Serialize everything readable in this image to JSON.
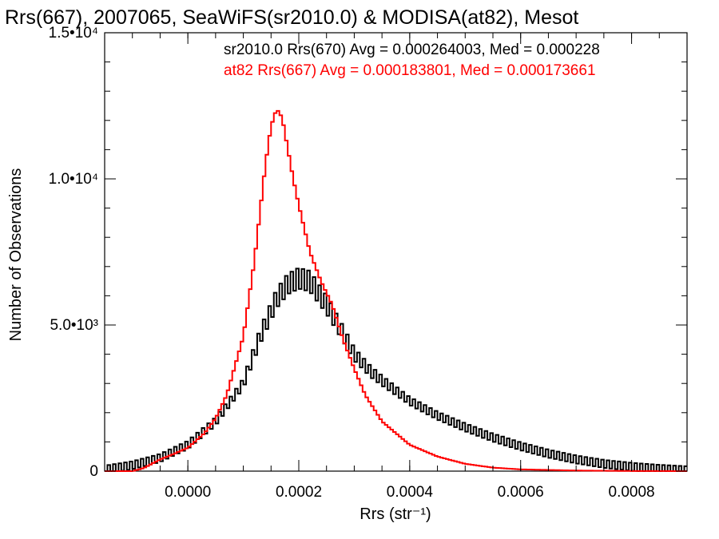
{
  "chart_data": {
    "type": "line",
    "title": "Rrs(667), 2007065, SeaWiFS(sr2010.0) & MODISA(at82), Mesot",
    "xlabel": "Rrs (str⁻¹)",
    "ylabel": "Number of Observations",
    "xlim": [
      -0.00015,
      0.0009
    ],
    "ylim": [
      0,
      15000
    ],
    "x_ticks": [
      "0.0000",
      "0.0002",
      "0.0004",
      "0.0006",
      "0.0008"
    ],
    "x_tick_values": [
      0.0,
      0.0002,
      0.0004,
      0.0006,
      0.0008
    ],
    "y_ticks": [
      "0",
      "5.0•10³",
      "1.0•10⁴",
      "1.5•10⁴"
    ],
    "y_tick_values": [
      0,
      5000,
      10000,
      15000
    ],
    "annotations": [
      {
        "text": "sr2010.0 Rrs(670) Avg = 0.000264003, Med = 0.000228",
        "color": "#000000"
      },
      {
        "text": "at82 Rrs(667) Avg = 0.000183801, Med = 0.000173661",
        "color": "#ff0000"
      }
    ],
    "series": [
      {
        "name": "sr2010.0 Rrs(670)",
        "color": "#000000",
        "step": "histogram",
        "noisy": true,
        "x": [
          -0.00015,
          -0.0001,
          -5e-05,
          0.0,
          5e-05,
          0.0001,
          0.00013,
          0.00016,
          0.00018,
          0.0002,
          0.00022,
          0.00025,
          0.00028,
          0.0003,
          0.00033,
          0.00035,
          0.0004,
          0.00045,
          0.0005,
          0.00055,
          0.0006,
          0.00065,
          0.0007,
          0.00075,
          0.0008,
          0.00085,
          0.0009
        ],
        "y": [
          50,
          200,
          450,
          900,
          1700,
          3000,
          4600,
          5900,
          6400,
          6600,
          6500,
          5700,
          4700,
          4000,
          3400,
          3100,
          2400,
          1900,
          1500,
          1150,
          850,
          600,
          400,
          250,
          150,
          80,
          30
        ]
      },
      {
        "name": "at82 Rrs(667)",
        "color": "#ff0000",
        "step": "histogram",
        "noisy": false,
        "x": [
          -0.00015,
          -0.0001,
          -8e-05,
          -5e-05,
          -3e-05,
          0.0,
          3e-05,
          5e-05,
          7e-05,
          0.0001,
          0.00012,
          0.00014,
          0.00015,
          0.00016,
          0.00017,
          0.00019,
          0.0002,
          0.00022,
          0.00024,
          0.00026,
          0.00028,
          0.0003,
          0.00032,
          0.00035,
          0.0004,
          0.00045,
          0.0005,
          0.00055,
          0.0006,
          0.0007,
          0.0008,
          0.0009
        ],
        "y": [
          0,
          0,
          100,
          400,
          550,
          800,
          1300,
          1800,
          2600,
          4600,
          7200,
          10500,
          11800,
          12400,
          12100,
          10000,
          9100,
          7500,
          6500,
          5700,
          4500,
          3500,
          2600,
          1700,
          900,
          500,
          250,
          120,
          60,
          20,
          5,
          0
        ]
      }
    ]
  }
}
